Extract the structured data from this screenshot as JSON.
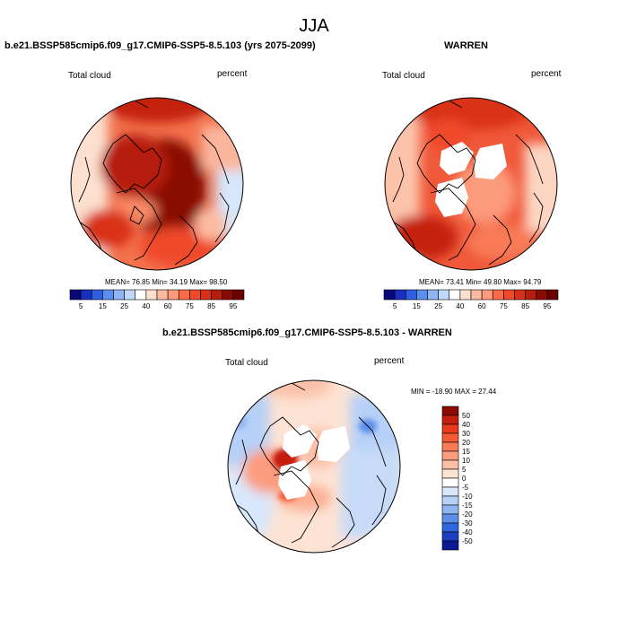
{
  "season": "JJA",
  "variable_label": "Total cloud",
  "units_label": "percent",
  "panels": [
    {
      "title": "b.e21.BSSP585cmip6.f09_g17.CMIP6-SSP5-8.5.103 (yrs 2075-2099)",
      "stats": {
        "mean": "76.85",
        "min": "34.19",
        "max": "98.50"
      },
      "stats_text": "MEAN=  76.85   Min=  34.19   Max=  98.50"
    },
    {
      "title": "WARREN",
      "stats": {
        "mean": "73.41",
        "min": "49.80",
        "max": "94.79"
      },
      "stats_text": "MEAN=  73.41   Min=  49.80   Max=  94.79"
    },
    {
      "title": "b.e21.BSSP585cmip6.f09_g17.CMIP6-SSP5-8.5.103 - WARREN",
      "stats": {
        "min": "-18.90",
        "max": "27.44"
      },
      "stats_text": "MIN = -18.90 MAX =  27.44"
    }
  ],
  "colorbar_abs": {
    "ticks": [
      "5",
      "15",
      "25",
      "40",
      "60",
      "75",
      "85",
      "95"
    ],
    "colors": [
      "#08087a",
      "#1a2fbf",
      "#2d5fe0",
      "#5b8ff0",
      "#8fb5f5",
      "#c0d8fa",
      "#ffffff",
      "#fde0cf",
      "#fcbba1",
      "#fc9a7b",
      "#f96a48",
      "#ef4a2c",
      "#d93018",
      "#b51d0c",
      "#8a0a04",
      "#6b0000"
    ]
  },
  "colorbar_diff": {
    "ticks": [
      "50",
      "40",
      "30",
      "20",
      "15",
      "10",
      "5",
      "0",
      "-5",
      "-10",
      "-15",
      "-20",
      "-30",
      "-40",
      "-50"
    ],
    "colors": [
      "#8a0a04",
      "#c41f0e",
      "#e83a1c",
      "#f55a36",
      "#f87a56",
      "#fb9c7e",
      "#fdbfa6",
      "#fde3d4",
      "#ffffff",
      "#d8e7fb",
      "#b6d0f7",
      "#8eb4f2",
      "#5c8eea",
      "#2f66dd",
      "#1a3fc0",
      "#0a1a90"
    ]
  }
}
